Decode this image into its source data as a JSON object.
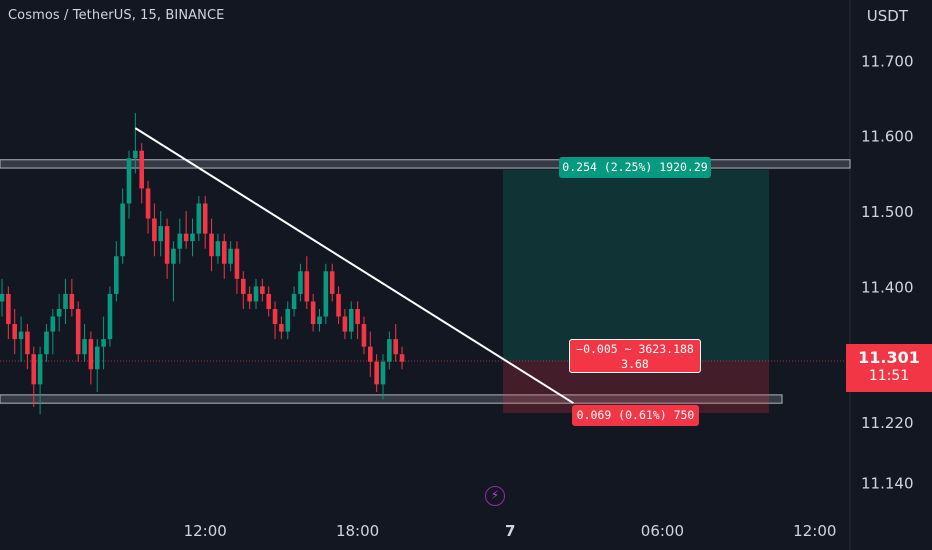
{
  "header": {
    "symbol_title": "Cosmos / TetherUS, 15, BINANCE",
    "currency": "USDT"
  },
  "current_price": {
    "price": "11.301",
    "countdown": "11:51",
    "color": "#f23645"
  },
  "position_tool": {
    "target_label": "0.254 (2.25%) 1920.29",
    "pnl_label": "−0.005 ~ 3623.188",
    "ratio_label": "3.68",
    "stop_label": "0.069 (0.61%) 750",
    "entry": 11.301,
    "target": 11.555,
    "stop": 11.232,
    "profit_color": "#089981",
    "loss_color": "#f23645"
  },
  "icons": {
    "alert": "lightning-bolt-icon"
  },
  "chart_data": {
    "type": "candlestick",
    "title": "Cosmos / TetherUS, 15, BINANCE",
    "ylabel": "USDT",
    "ylim": [
      11.09,
      11.78
    ],
    "y_ticks": [
      "11.700",
      "11.600",
      "11.500",
      "11.400",
      "11.220",
      "11.140"
    ],
    "y_tick_values": [
      11.7,
      11.6,
      11.5,
      11.4,
      11.22,
      11.14
    ],
    "x_ticks": [
      "12:00",
      "18:00",
      "7",
      "06:00",
      "12:00"
    ],
    "x_tick_slots": [
      32,
      56,
      80,
      104,
      128
    ],
    "up_color": "#089981",
    "down_color": "#f23645",
    "candles": [
      [
        11.38,
        11.41,
        11.36,
        11.39
      ],
      [
        11.39,
        11.4,
        11.33,
        11.35
      ],
      [
        11.35,
        11.37,
        11.31,
        11.33
      ],
      [
        11.33,
        11.36,
        11.3,
        11.34
      ],
      [
        11.34,
        11.35,
        11.29,
        11.31
      ],
      [
        11.31,
        11.32,
        11.24,
        11.27
      ],
      [
        11.27,
        11.32,
        11.23,
        11.31
      ],
      [
        11.31,
        11.35,
        11.3,
        11.34
      ],
      [
        11.34,
        11.37,
        11.31,
        11.36
      ],
      [
        11.36,
        11.39,
        11.34,
        11.37
      ],
      [
        11.37,
        11.41,
        11.35,
        11.39
      ],
      [
        11.39,
        11.41,
        11.36,
        11.37
      ],
      [
        11.37,
        11.38,
        11.3,
        11.31
      ],
      [
        11.31,
        11.35,
        11.3,
        11.33
      ],
      [
        11.33,
        11.34,
        11.27,
        11.29
      ],
      [
        11.29,
        11.33,
        11.26,
        11.32
      ],
      [
        11.32,
        11.36,
        11.29,
        11.33
      ],
      [
        11.33,
        11.4,
        11.32,
        11.39
      ],
      [
        11.39,
        11.46,
        11.38,
        11.44
      ],
      [
        11.44,
        11.53,
        11.43,
        11.51
      ],
      [
        11.51,
        11.58,
        11.49,
        11.57
      ],
      [
        11.57,
        11.63,
        11.55,
        11.58
      ],
      [
        11.58,
        11.59,
        11.51,
        11.53
      ],
      [
        11.53,
        11.54,
        11.47,
        11.49
      ],
      [
        11.49,
        11.51,
        11.44,
        11.46
      ],
      [
        11.46,
        11.5,
        11.44,
        11.48
      ],
      [
        11.48,
        11.49,
        11.41,
        11.43
      ],
      [
        11.43,
        11.46,
        11.38,
        11.45
      ],
      [
        11.45,
        11.49,
        11.43,
        11.47
      ],
      [
        11.47,
        11.5,
        11.45,
        11.46
      ],
      [
        11.46,
        11.49,
        11.44,
        11.47
      ],
      [
        11.47,
        11.52,
        11.46,
        11.51
      ],
      [
        11.51,
        11.52,
        11.45,
        11.47
      ],
      [
        11.47,
        11.49,
        11.42,
        11.44
      ],
      [
        11.44,
        11.47,
        11.43,
        11.46
      ],
      [
        11.46,
        11.47,
        11.41,
        11.43
      ],
      [
        11.43,
        11.46,
        11.42,
        11.45
      ],
      [
        11.45,
        11.46,
        11.39,
        11.41
      ],
      [
        11.41,
        11.42,
        11.37,
        11.39
      ],
      [
        11.39,
        11.4,
        11.37,
        11.38
      ],
      [
        11.38,
        11.41,
        11.37,
        11.4
      ],
      [
        11.4,
        11.41,
        11.38,
        11.39
      ],
      [
        11.39,
        11.4,
        11.36,
        11.37
      ],
      [
        11.37,
        11.38,
        11.33,
        11.35
      ],
      [
        11.35,
        11.36,
        11.33,
        11.34
      ],
      [
        11.34,
        11.38,
        11.33,
        11.37
      ],
      [
        11.37,
        11.4,
        11.36,
        11.39
      ],
      [
        11.39,
        11.43,
        11.38,
        11.42
      ],
      [
        11.42,
        11.44,
        11.37,
        11.38
      ],
      [
        11.38,
        11.39,
        11.34,
        11.35
      ],
      [
        11.35,
        11.37,
        11.34,
        11.36
      ],
      [
        11.36,
        11.43,
        11.35,
        11.42
      ],
      [
        11.42,
        11.43,
        11.38,
        11.39
      ],
      [
        11.39,
        11.4,
        11.35,
        11.36
      ],
      [
        11.36,
        11.37,
        11.33,
        11.34
      ],
      [
        11.34,
        11.38,
        11.33,
        11.37
      ],
      [
        11.37,
        11.38,
        11.33,
        11.35
      ],
      [
        11.35,
        11.36,
        11.31,
        11.32
      ],
      [
        11.32,
        11.34,
        11.28,
        11.3
      ],
      [
        11.3,
        11.31,
        11.26,
        11.27
      ],
      [
        11.27,
        11.31,
        11.25,
        11.3
      ],
      [
        11.3,
        11.34,
        11.29,
        11.33
      ],
      [
        11.33,
        11.35,
        11.3,
        11.31
      ],
      [
        11.31,
        11.32,
        11.29,
        11.3
      ]
    ],
    "annotations": [
      {
        "type": "horizontal_band",
        "y": [
          11.557,
          11.568
        ]
      },
      {
        "type": "horizontal_band",
        "y": [
          11.245,
          11.256
        ]
      },
      {
        "type": "trendline",
        "from": [
          21,
          11.61
        ],
        "to": [
          90,
          11.245
        ]
      }
    ]
  }
}
